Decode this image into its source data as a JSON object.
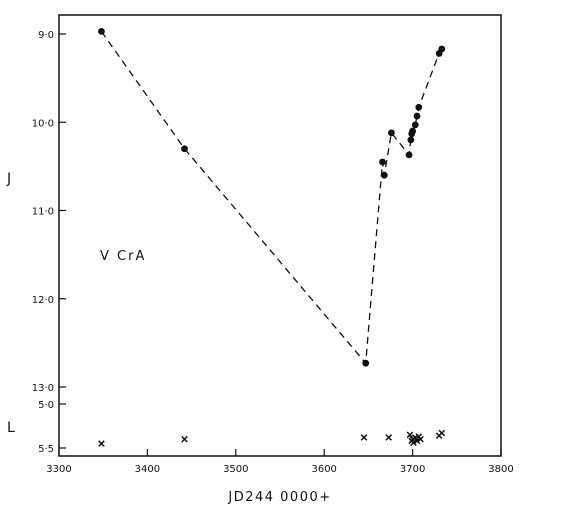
{
  "chart_data": {
    "type": "scatter",
    "object_label": "V CrA",
    "xlabel": "JD244 0000+",
    "xlim": [
      3300,
      3800
    ],
    "x_ticks": [
      3300,
      3400,
      3500,
      3600,
      3700,
      3800
    ],
    "x_tick_labels": [
      "3300",
      "3400",
      "3500",
      "3600",
      "3700",
      "3800"
    ],
    "panels": [
      {
        "axis_label": "J",
        "ylim": [
          13.0,
          9.0
        ],
        "y_ticks": [
          9.0,
          10.0,
          11.0,
          12.0,
          13.0
        ],
        "y_tick_labels": [
          "9·0",
          "10·0",
          "11·0",
          "12·0",
          "13·0"
        ],
        "marker": "circle",
        "connect": "dashed",
        "x": [
          3348,
          3442,
          3647,
          3666,
          3668,
          3676,
          3696,
          3698,
          3699,
          3700,
          3703,
          3705,
          3707,
          3730,
          3733
        ],
        "y": [
          8.97,
          10.3,
          12.73,
          10.45,
          10.6,
          10.12,
          10.37,
          10.2,
          10.13,
          10.1,
          10.03,
          9.93,
          9.83,
          9.22,
          9.17
        ]
      },
      {
        "axis_label": "L",
        "ylim": [
          5.5,
          5.0
        ],
        "y_ticks": [
          5.0,
          5.5
        ],
        "y_tick_labels": [
          "5·0",
          "5·5"
        ],
        "marker": "cross",
        "connect": "none",
        "x": [
          3348,
          3442,
          3645,
          3673,
          3697,
          3699,
          3700,
          3701,
          3703,
          3705,
          3707,
          3709,
          3730,
          3733
        ],
        "y": [
          5.45,
          5.4,
          5.38,
          5.38,
          5.35,
          5.42,
          5.4,
          5.44,
          5.38,
          5.42,
          5.37,
          5.4,
          5.36,
          5.33
        ]
      }
    ]
  }
}
